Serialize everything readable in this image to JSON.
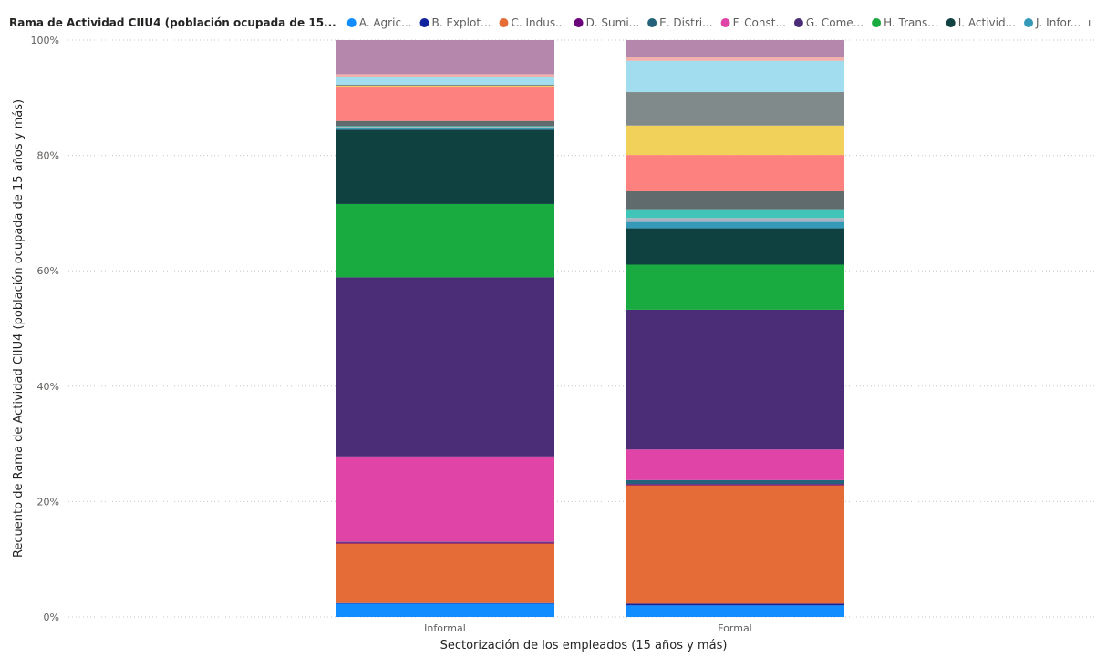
{
  "chart_data": {
    "type": "bar",
    "stacked": "percent",
    "legend": {
      "title": "Rama de Actividad CIIU4 (población ocupada de 15...",
      "position": "top-left",
      "overflow_marker": "ı",
      "entries": [
        {
          "label": "A. Agric...",
          "color": "#118DFF"
        },
        {
          "label": "B. Explot...",
          "color": "#12239E"
        },
        {
          "label": "C. Indus...",
          "color": "#E66C37"
        },
        {
          "label": "D. Sumi...",
          "color": "#6B007B"
        },
        {
          "label": "E. Distri...",
          "color": "#23627A"
        },
        {
          "label": "F. Const...",
          "color": "#E044A7"
        },
        {
          "label": "G. Come...",
          "color": "#4A2C77"
        },
        {
          "label": "H. Trans...",
          "color": "#1AAB40"
        },
        {
          "label": "I. Activid...",
          "color": "#0F4141"
        },
        {
          "label": "J. Infor...",
          "color": "#3599B8"
        }
      ]
    },
    "categories": [
      "Informal",
      "Formal"
    ],
    "xlabel": "Sectorización de los empleados (15 años y más)",
    "ylabel": "Recuento de Rama de Actividad CIIU4 (población ocupada de 15 años y más)",
    "ylim": [
      0,
      100
    ],
    "yticks": [
      "0%",
      "20%",
      "40%",
      "60%",
      "80%",
      "100%"
    ],
    "grid": true,
    "series": [
      {
        "color": "#118DFF",
        "values": [
          2.3,
          2.0
        ]
      },
      {
        "color": "#12239E",
        "values": [
          0.1,
          0.3
        ]
      },
      {
        "color": "#E66C37",
        "values": [
          10.3,
          20.5
        ]
      },
      {
        "color": "#6B007B",
        "values": [
          0.2,
          0.2
        ]
      },
      {
        "color": "#23627A",
        "values": [
          0.1,
          0.7
        ]
      },
      {
        "color": "#E044A7",
        "values": [
          14.8,
          5.3
        ]
      },
      {
        "color": "#4A2C77",
        "values": [
          31.0,
          24.2
        ]
      },
      {
        "color": "#1AAB40",
        "values": [
          12.7,
          7.8
        ]
      },
      {
        "color": "#0F4141",
        "values": [
          12.9,
          6.3
        ]
      },
      {
        "color": "#3599B8",
        "values": [
          0.3,
          1.1
        ]
      },
      {
        "color": "#A8B4C0",
        "values": [
          0.2,
          0.7
        ]
      },
      {
        "color": "#40C5B8",
        "values": [
          0.1,
          1.5
        ]
      },
      {
        "color": "#5F6B6D",
        "values": [
          0.9,
          3.1
        ]
      },
      {
        "color": "#FD817E",
        "values": [
          5.9,
          6.3
        ]
      },
      {
        "color": "#F2C80F",
        "values": [
          0.1,
          0.0
        ]
      },
      {
        "color": "#F2D15A",
        "values": [
          0.1,
          5.1
        ]
      },
      {
        "color": "#808A8A",
        "values": [
          0.2,
          5.8
        ]
      },
      {
        "color": "#A1DDEF",
        "values": [
          1.3,
          5.4
        ]
      },
      {
        "color": "#F0B0AC",
        "values": [
          0.5,
          0.6
        ]
      },
      {
        "color": "#B587AD",
        "values": [
          5.9,
          3.0
        ]
      }
    ]
  }
}
